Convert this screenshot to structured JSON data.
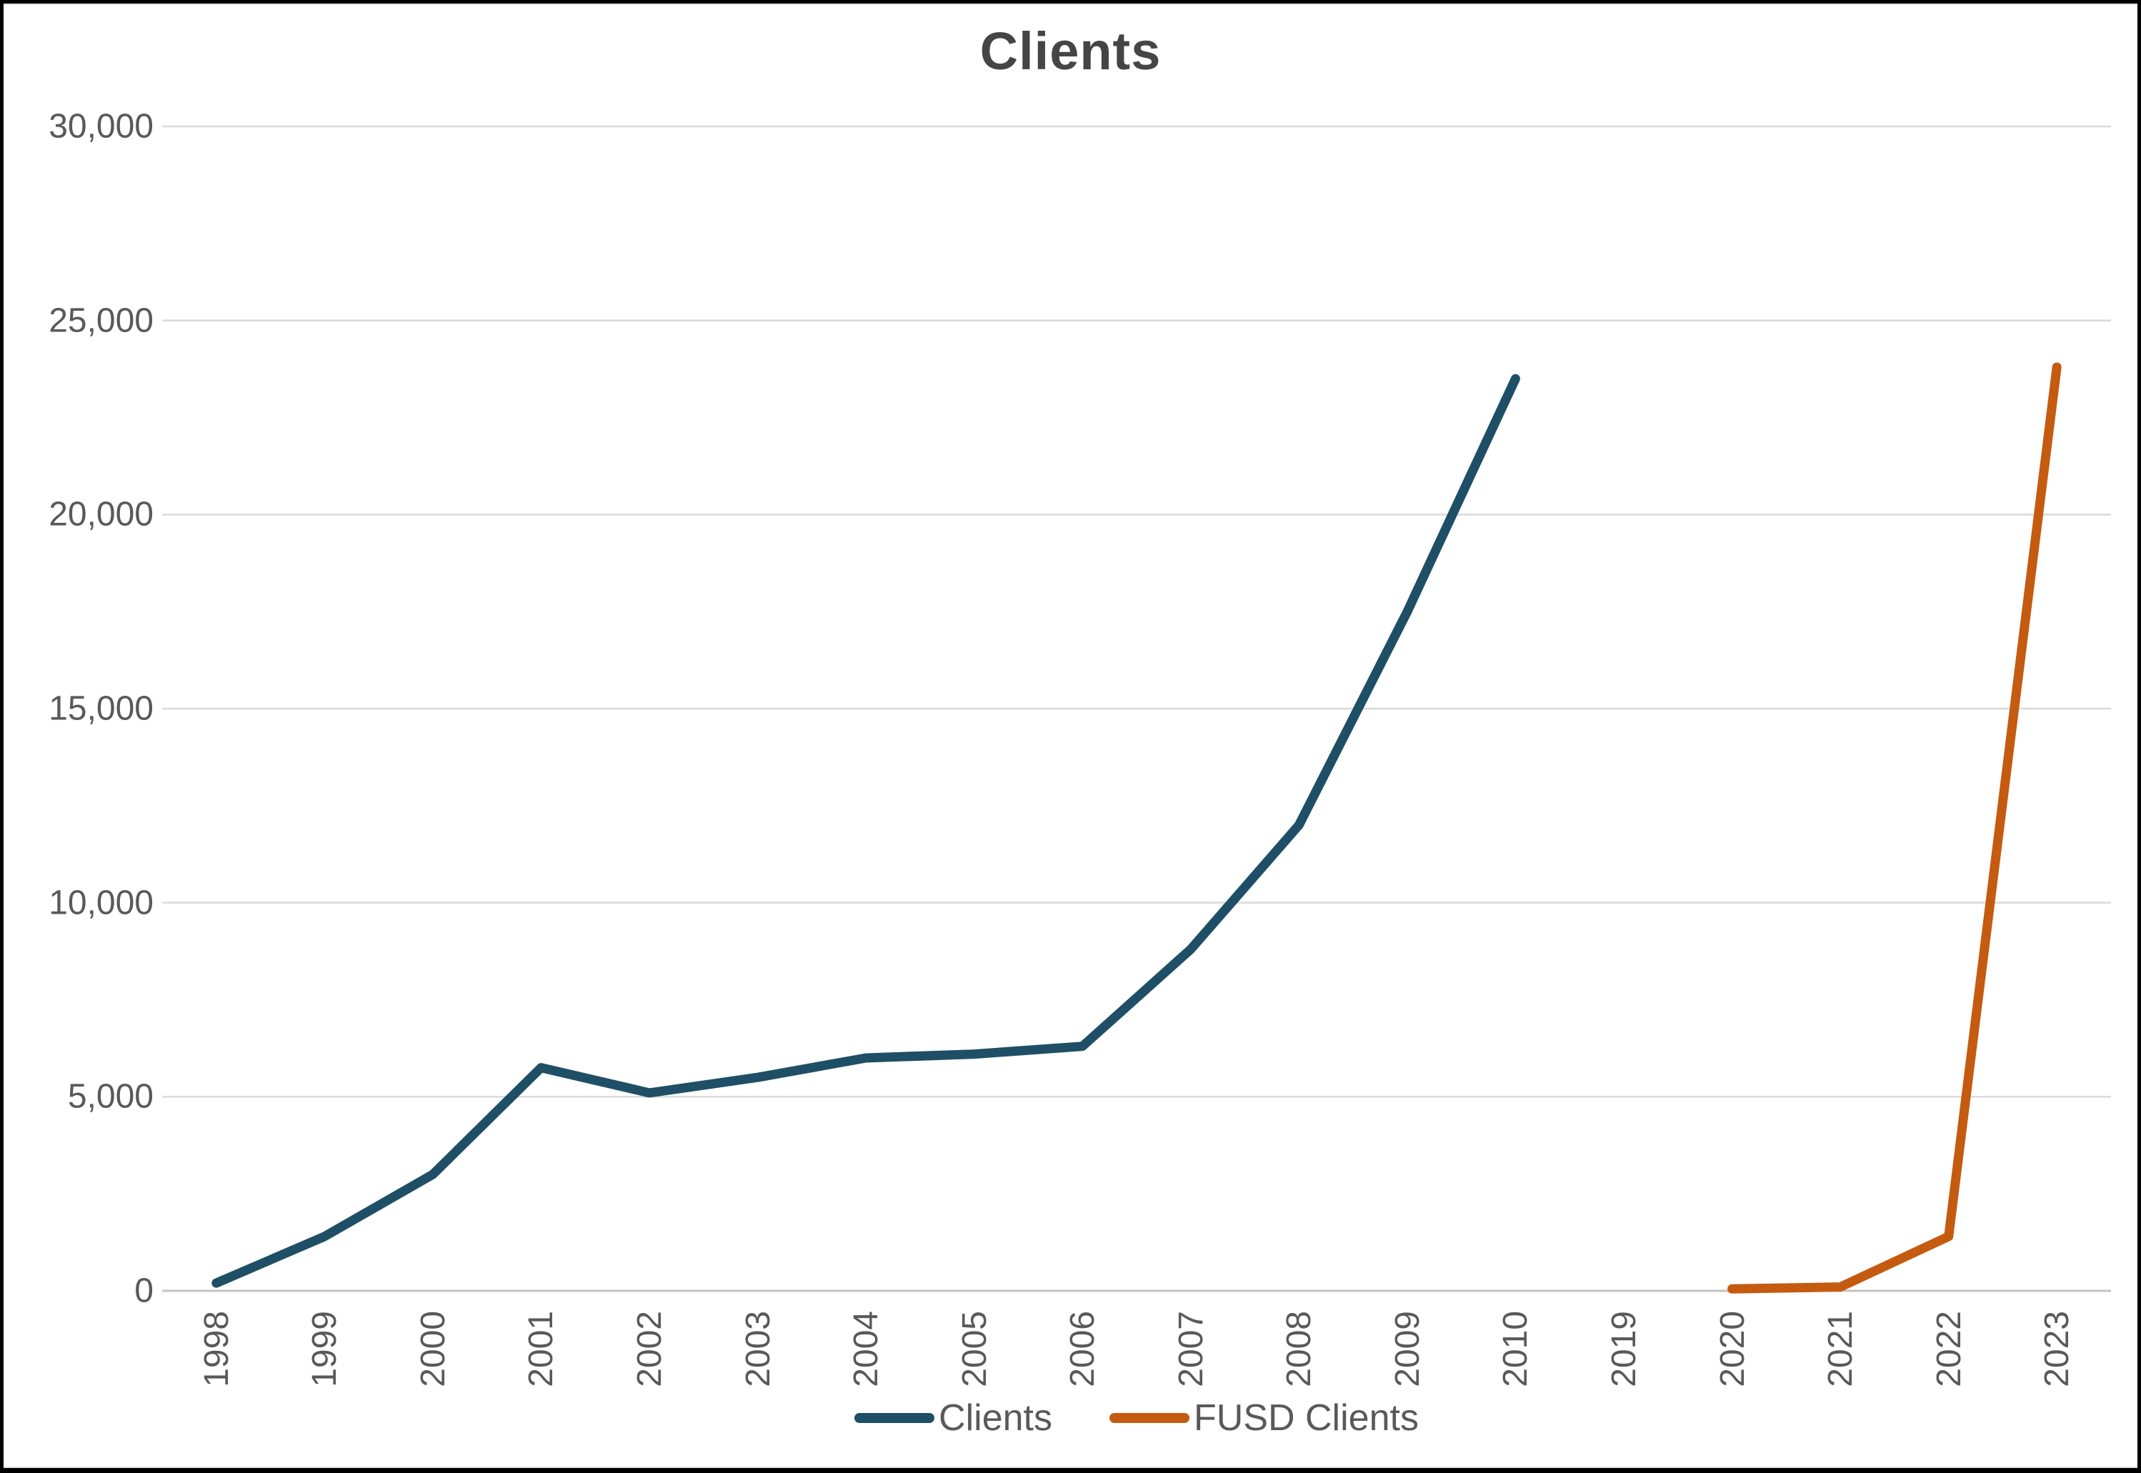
{
  "chart_data": {
    "type": "line",
    "title": "Clients",
    "categories": [
      "1998",
      "1999",
      "2000",
      "2001",
      "2002",
      "2003",
      "2004",
      "2005",
      "2006",
      "2007",
      "2008",
      "2009",
      "2010",
      "2019",
      "2020",
      "2021",
      "2022",
      "2023"
    ],
    "series": [
      {
        "name": "Clients",
        "color": "#1E4F66",
        "values": [
          200,
          1400,
          3000,
          5750,
          5100,
          5500,
          6000,
          6100,
          6300,
          8800,
          12000,
          17500,
          23500,
          null,
          null,
          null,
          null,
          null
        ]
      },
      {
        "name": "FUSD Clients",
        "color": "#C55A11",
        "values": [
          null,
          null,
          null,
          null,
          null,
          null,
          null,
          null,
          null,
          null,
          null,
          null,
          null,
          null,
          50,
          100,
          1400,
          23800
        ]
      }
    ],
    "ylim": [
      0,
      30000
    ],
    "y_ticks": [
      "30,000",
      "25,000",
      "20,000",
      "15,000",
      "10,000",
      "5,000",
      "0"
    ],
    "xlabel": "",
    "ylabel": "",
    "grid": "horizontal",
    "legend_position": "bottom",
    "gridline_color": "#D9D9D9",
    "axis_color": "#C3C3C3",
    "label_color": "#595959",
    "title_color": "#454545"
  }
}
